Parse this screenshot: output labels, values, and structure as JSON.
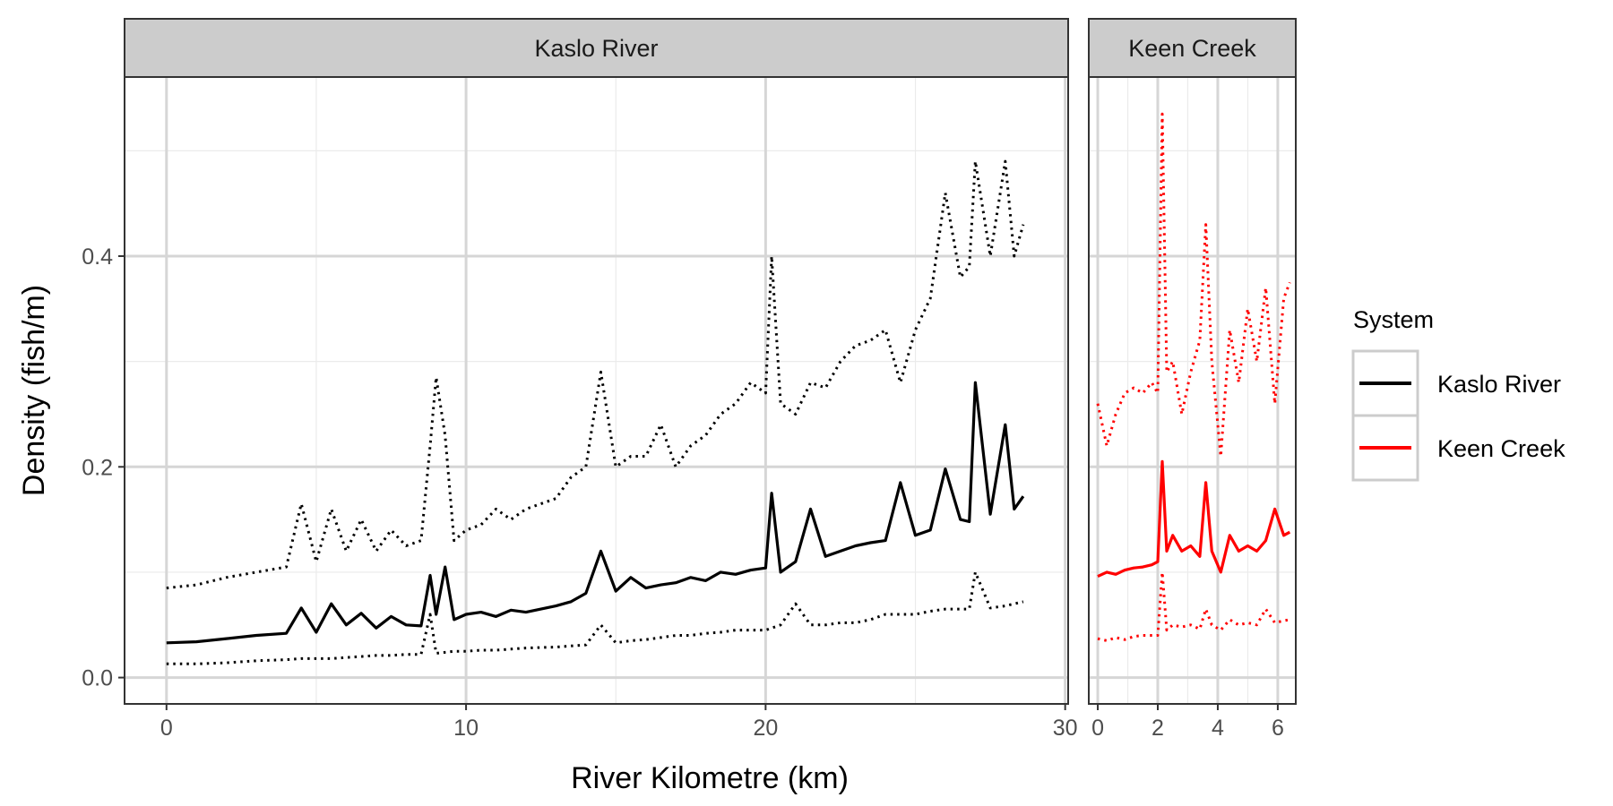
{
  "chart_data": {
    "type": "line",
    "xlabel": "River Kilometre (km)",
    "ylabel": "Density (fish/m)",
    "ylim": [
      -0.025,
      0.57
    ],
    "yticks": [
      0.0,
      0.2,
      0.4
    ],
    "ytick_labels": [
      "0.0",
      "0.2",
      "0.4"
    ],
    "grid": true,
    "legend": {
      "title": "System",
      "placement": "right",
      "entries": [
        {
          "name": "Kaslo River",
          "color": "#000000"
        },
        {
          "name": "Keen Creek",
          "color": "#ff0000"
        }
      ]
    },
    "line_styles": {
      "estimate": "solid",
      "interval": "dotted"
    },
    "panels": [
      {
        "label": "Kaslo River",
        "color": "#000000",
        "xlim": [
          -1.4,
          30.1
        ],
        "xticks": [
          0,
          10,
          20,
          30
        ],
        "xtick_labels": [
          "0",
          "10",
          "20",
          "30"
        ],
        "x": [
          0,
          1,
          2,
          3,
          4,
          4.5,
          5,
          5.5,
          6,
          6.5,
          7,
          7.5,
          8,
          8.5,
          8.8,
          9,
          9.3,
          9.6,
          10,
          10.5,
          11,
          11.5,
          12,
          13,
          13.5,
          14,
          14.5,
          15,
          15.5,
          16,
          16.5,
          17,
          17.5,
          18,
          18.5,
          19,
          19.5,
          20,
          20.2,
          20.5,
          21,
          21.5,
          22,
          22.5,
          23,
          23.5,
          24,
          24.5,
          25,
          25.5,
          26,
          26.5,
          26.8,
          27,
          27.5,
          28,
          28.3,
          28.6
        ],
        "estimate": [
          0.033,
          0.034,
          0.037,
          0.04,
          0.042,
          0.066,
          0.043,
          0.07,
          0.05,
          0.061,
          0.047,
          0.058,
          0.05,
          0.049,
          0.097,
          0.06,
          0.105,
          0.055,
          0.06,
          0.062,
          0.058,
          0.064,
          0.062,
          0.068,
          0.072,
          0.08,
          0.12,
          0.082,
          0.095,
          0.085,
          0.088,
          0.09,
          0.095,
          0.092,
          0.1,
          0.098,
          0.102,
          0.104,
          0.175,
          0.1,
          0.11,
          0.16,
          0.115,
          0.12,
          0.125,
          0.128,
          0.13,
          0.185,
          0.135,
          0.14,
          0.198,
          0.15,
          0.148,
          0.28,
          0.155,
          0.24,
          0.16,
          0.172
        ],
        "lower": [
          0.013,
          0.013,
          0.014,
          0.016,
          0.017,
          0.018,
          0.018,
          0.018,
          0.019,
          0.02,
          0.021,
          0.021,
          0.022,
          0.022,
          0.06,
          0.023,
          0.024,
          0.025,
          0.025,
          0.026,
          0.026,
          0.027,
          0.028,
          0.029,
          0.03,
          0.031,
          0.05,
          0.033,
          0.035,
          0.036,
          0.038,
          0.04,
          0.04,
          0.042,
          0.043,
          0.045,
          0.045,
          0.045,
          0.047,
          0.05,
          0.07,
          0.05,
          0.05,
          0.052,
          0.052,
          0.055,
          0.06,
          0.06,
          0.06,
          0.063,
          0.065,
          0.065,
          0.065,
          0.1,
          0.066,
          0.068,
          0.07,
          0.072
        ],
        "upper": [
          0.085,
          0.088,
          0.095,
          0.1,
          0.105,
          0.165,
          0.11,
          0.16,
          0.12,
          0.15,
          0.12,
          0.14,
          0.125,
          0.13,
          0.22,
          0.285,
          0.23,
          0.13,
          0.14,
          0.145,
          0.16,
          0.15,
          0.16,
          0.17,
          0.19,
          0.2,
          0.29,
          0.2,
          0.21,
          0.21,
          0.24,
          0.2,
          0.22,
          0.23,
          0.25,
          0.26,
          0.28,
          0.27,
          0.4,
          0.26,
          0.25,
          0.28,
          0.275,
          0.3,
          0.315,
          0.32,
          0.33,
          0.28,
          0.33,
          0.36,
          0.46,
          0.38,
          0.39,
          0.49,
          0.4,
          0.49,
          0.4,
          0.43
        ]
      },
      {
        "label": "Keen Creek",
        "color": "#ff0000",
        "xlim": [
          -0.3,
          6.6
        ],
        "xticks": [
          0,
          2,
          4,
          6
        ],
        "xtick_labels": [
          "0",
          "2",
          "4",
          "6"
        ],
        "x": [
          0,
          0.3,
          0.6,
          0.9,
          1.2,
          1.5,
          1.8,
          2.0,
          2.15,
          2.3,
          2.5,
          2.8,
          3.1,
          3.4,
          3.6,
          3.8,
          4.1,
          4.4,
          4.7,
          5.0,
          5.3,
          5.6,
          5.9,
          6.2,
          6.4
        ],
        "estimate": [
          0.096,
          0.1,
          0.098,
          0.102,
          0.104,
          0.105,
          0.107,
          0.11,
          0.205,
          0.12,
          0.135,
          0.12,
          0.125,
          0.115,
          0.185,
          0.12,
          0.1,
          0.135,
          0.12,
          0.125,
          0.12,
          0.13,
          0.16,
          0.135,
          0.138
        ],
        "lower": [
          0.037,
          0.035,
          0.038,
          0.036,
          0.039,
          0.04,
          0.04,
          0.04,
          0.1,
          0.045,
          0.05,
          0.048,
          0.05,
          0.046,
          0.065,
          0.05,
          0.045,
          0.055,
          0.05,
          0.052,
          0.05,
          0.065,
          0.052,
          0.054,
          0.055
        ],
        "upper": [
          0.26,
          0.22,
          0.25,
          0.27,
          0.275,
          0.27,
          0.28,
          0.27,
          0.535,
          0.29,
          0.3,
          0.25,
          0.29,
          0.32,
          0.43,
          0.3,
          0.21,
          0.33,
          0.28,
          0.35,
          0.3,
          0.37,
          0.26,
          0.36,
          0.375
        ]
      }
    ]
  }
}
